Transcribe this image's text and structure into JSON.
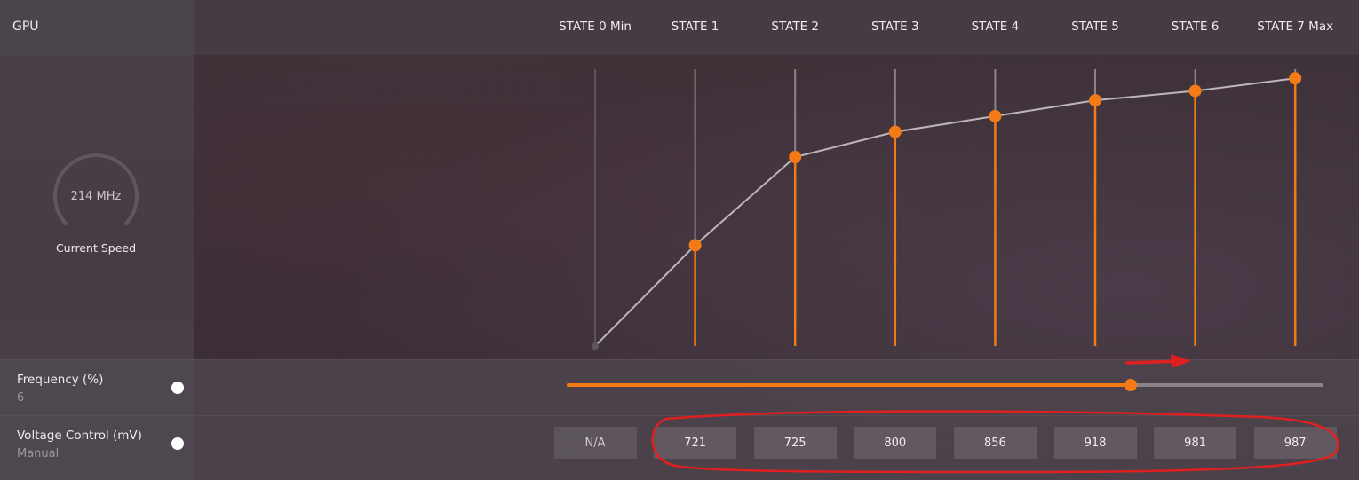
{
  "header": {
    "title": "GPU"
  },
  "states": [
    "STATE 0 Min",
    "STATE 1",
    "STATE 2",
    "STATE 3",
    "STATE 4",
    "STATE 5",
    "STATE 6",
    "STATE 7 Max"
  ],
  "gauge": {
    "value": "214 MHz",
    "caption": "Current Speed"
  },
  "frequency": {
    "label": "Frequency (%)",
    "value": "6",
    "slider_fraction": 0.745
  },
  "voltage": {
    "label": "Voltage Control (mV)",
    "mode": "Manual",
    "values": [
      "N/A",
      "721",
      "725",
      "800",
      "856",
      "918",
      "981",
      "987"
    ]
  },
  "colors": {
    "accent": "#f47a16",
    "annotation": "#e02020",
    "curve": "#bdb6bd"
  },
  "chart_data": {
    "type": "line",
    "categories": [
      "STATE 0 Min",
      "STATE 1",
      "STATE 2",
      "STATE 3",
      "STATE 4",
      "STATE 5",
      "STATE 6",
      "STATE 7 Max"
    ],
    "series": [
      {
        "values": [
          0,
          0.32,
          0.6,
          0.68,
          0.73,
          0.78,
          0.81,
          0.85
        ]
      }
    ],
    "ylim": [
      0,
      1
    ]
  }
}
